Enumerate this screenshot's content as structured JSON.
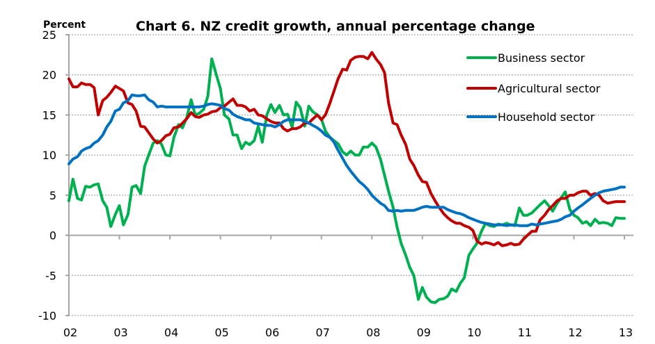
{
  "chart_data": {
    "type": "line",
    "title": "Chart 6.  NZ credit growth, annual percentage change",
    "ylabel": "Percent",
    "xlabel": "",
    "ylim": [
      -10,
      25
    ],
    "yticks": [
      25,
      20,
      15,
      10,
      5,
      0,
      -5,
      -10
    ],
    "xlim": [
      2002,
      2013
    ],
    "xtick_labels": [
      "02",
      "03",
      "04",
      "05",
      "06",
      "07",
      "08",
      "09",
      "10",
      "11",
      "12",
      "13"
    ],
    "grid": "horizontal dotted",
    "legend_position": "top-right",
    "series": [
      {
        "name": "Business sector",
        "color": "#00b050",
        "x": [
          2002.0,
          2002.08,
          2002.17,
          2002.25,
          2002.33,
          2002.42,
          2002.5,
          2002.58,
          2002.67,
          2002.75,
          2002.83,
          2002.92,
          2003.0,
          2003.08,
          2003.17,
          2003.25,
          2003.33,
          2003.42,
          2003.5,
          2003.58,
          2003.67,
          2003.75,
          2003.83,
          2003.92,
          2004.0,
          2004.08,
          2004.17,
          2004.25,
          2004.33,
          2004.42,
          2004.5,
          2004.58,
          2004.67,
          2004.75,
          2004.83,
          2004.92,
          2005.0,
          2005.08,
          2005.17,
          2005.25,
          2005.33,
          2005.42,
          2005.5,
          2005.58,
          2005.67,
          2005.75,
          2005.83,
          2005.92,
          2006.0,
          2006.08,
          2006.17,
          2006.25,
          2006.33,
          2006.42,
          2006.5,
          2006.58,
          2006.67,
          2006.75,
          2006.83,
          2006.92,
          2007.0,
          2007.08,
          2007.17,
          2007.25,
          2007.33,
          2007.42,
          2007.5,
          2007.58,
          2007.67,
          2007.75,
          2007.83,
          2007.92,
          2008.0,
          2008.08,
          2008.17,
          2008.25,
          2008.33,
          2008.42,
          2008.5,
          2008.58,
          2008.67,
          2008.75,
          2008.83,
          2008.92,
          2009.0,
          2009.08,
          2009.17,
          2009.25,
          2009.33,
          2009.42,
          2009.5,
          2009.58,
          2009.67,
          2009.75,
          2009.83,
          2009.92,
          2010.0,
          2010.08,
          2010.17,
          2010.25,
          2010.33,
          2010.42,
          2010.5,
          2010.58,
          2010.67,
          2010.75,
          2010.83,
          2010.92,
          2011.0,
          2011.08,
          2011.17,
          2011.25,
          2011.33,
          2011.42,
          2011.5,
          2011.58,
          2011.67,
          2011.75,
          2011.83,
          2011.92,
          2012.0,
          2012.08,
          2012.17,
          2012.25,
          2012.33,
          2012.42,
          2012.5,
          2012.58,
          2012.67,
          2012.75,
          2012.83,
          2012.92,
          2013.0
        ],
        "y": [
          4.3,
          7.0,
          4.6,
          4.4,
          6.1,
          6.0,
          6.3,
          6.4,
          4.3,
          3.5,
          1.1,
          2.6,
          3.7,
          1.3,
          2.6,
          6.0,
          6.2,
          5.2,
          8.6,
          10.0,
          11.5,
          11.8,
          11.4,
          10.0,
          9.9,
          12.2,
          13.8,
          13.4,
          14.6,
          16.9,
          15.0,
          15.2,
          15.7,
          17.3,
          22.0,
          20.0,
          18.3,
          15.0,
          14.5,
          12.5,
          12.5,
          10.8,
          11.6,
          11.3,
          11.8,
          13.6,
          11.6,
          15.0,
          16.3,
          15.3,
          16.2,
          15.0,
          15.1,
          13.5,
          16.6,
          15.9,
          13.6,
          16.1,
          15.4,
          15.0,
          14.5,
          13.0,
          12.2,
          11.8,
          11.4,
          10.4,
          10.0,
          10.5,
          10.0,
          10.0,
          11.0,
          11.0,
          11.5,
          11.0,
          9.5,
          7.5,
          5.5,
          3.5,
          1.0,
          -1.0,
          -2.5,
          -4.0,
          -5.0,
          -8.0,
          -6.5,
          -7.7,
          -8.3,
          -8.4,
          -8.0,
          -7.9,
          -7.6,
          -6.7,
          -7.0,
          -6.0,
          -5.3,
          -2.5,
          -1.7,
          -1.0,
          0.5,
          1.5,
          1.2,
          1.1,
          1.4,
          1.3,
          1.5,
          1.3,
          1.2,
          3.4,
          2.5,
          2.5,
          2.8,
          3.3,
          3.8,
          4.3,
          3.7,
          3.0,
          4.0,
          4.7,
          5.4,
          3.2,
          2.5,
          2.2,
          1.5,
          1.7,
          1.2,
          2.0,
          1.5,
          1.6,
          1.5,
          1.2,
          2.2,
          2.1,
          2.1
        ],
        "legend_label": "Business sector"
      },
      {
        "name": "Agricultural sector",
        "color": "#c00000",
        "x": [
          2002.0,
          2002.08,
          2002.17,
          2002.25,
          2002.33,
          2002.42,
          2002.5,
          2002.58,
          2002.67,
          2002.75,
          2002.83,
          2002.92,
          2003.0,
          2003.08,
          2003.17,
          2003.25,
          2003.33,
          2003.42,
          2003.5,
          2003.58,
          2003.67,
          2003.75,
          2003.83,
          2003.92,
          2004.0,
          2004.08,
          2004.17,
          2004.25,
          2004.33,
          2004.42,
          2004.5,
          2004.58,
          2004.67,
          2004.75,
          2004.83,
          2004.92,
          2005.0,
          2005.08,
          2005.17,
          2005.25,
          2005.33,
          2005.42,
          2005.5,
          2005.58,
          2005.67,
          2005.75,
          2005.83,
          2005.92,
          2006.0,
          2006.08,
          2006.17,
          2006.25,
          2006.33,
          2006.42,
          2006.5,
          2006.58,
          2006.67,
          2006.75,
          2006.83,
          2006.92,
          2007.0,
          2007.08,
          2007.17,
          2007.25,
          2007.33,
          2007.42,
          2007.5,
          2007.58,
          2007.67,
          2007.75,
          2007.83,
          2007.92,
          2008.0,
          2008.08,
          2008.17,
          2008.25,
          2008.33,
          2008.42,
          2008.5,
          2008.58,
          2008.67,
          2008.75,
          2008.83,
          2008.92,
          2009.0,
          2009.08,
          2009.17,
          2009.25,
          2009.33,
          2009.42,
          2009.5,
          2009.58,
          2009.67,
          2009.75,
          2009.83,
          2009.92,
          2010.0,
          2010.08,
          2010.17,
          2010.25,
          2010.33,
          2010.42,
          2010.5,
          2010.58,
          2010.67,
          2010.75,
          2010.83,
          2010.92,
          2011.0,
          2011.08,
          2011.17,
          2011.25,
          2011.33,
          2011.42,
          2011.5,
          2011.58,
          2011.67,
          2011.75,
          2011.83,
          2011.92,
          2012.0,
          2012.08,
          2012.17,
          2012.25,
          2012.33,
          2012.42,
          2012.5,
          2012.58,
          2012.67,
          2012.75,
          2012.83,
          2012.92,
          2013.0
        ],
        "y": [
          19.5,
          18.5,
          18.5,
          19.0,
          18.8,
          18.8,
          18.4,
          15.0,
          16.8,
          17.2,
          17.8,
          18.6,
          18.3,
          18.0,
          16.5,
          16.3,
          15.5,
          13.6,
          13.5,
          12.8,
          12.0,
          11.5,
          11.8,
          12.4,
          12.6,
          13.4,
          13.5,
          14.0,
          14.5,
          15.3,
          14.8,
          14.7,
          15.0,
          15.1,
          15.4,
          15.5,
          15.9,
          16.1,
          16.6,
          17.0,
          16.2,
          16.2,
          16.0,
          15.5,
          15.7,
          15.0,
          14.9,
          14.5,
          14.2,
          14.0,
          14.0,
          13.3,
          13.0,
          13.3,
          13.3,
          13.5,
          14.0,
          14.0,
          14.5,
          15.0,
          14.4,
          15.0,
          16.5,
          18.0,
          19.5,
          20.7,
          20.6,
          21.8,
          22.2,
          22.3,
          22.3,
          22.0,
          22.8,
          22.0,
          21.3,
          20.3,
          16.5,
          14.0,
          13.8,
          12.5,
          11.3,
          9.5,
          8.7,
          7.5,
          6.7,
          6.6,
          5.2,
          4.3,
          3.5,
          2.7,
          2.2,
          1.8,
          1.5,
          1.5,
          1.2,
          1.0,
          0.6,
          -0.7,
          -1.1,
          -0.9,
          -1.0,
          -1.2,
          -0.9,
          -1.3,
          -1.2,
          -1.0,
          -1.2,
          -1.1,
          -0.5,
          0.0,
          0.5,
          0.5,
          1.9,
          2.5,
          3.2,
          3.7,
          4.3,
          4.6,
          4.6,
          5.0,
          5.0,
          5.3,
          5.5,
          5.5,
          5.0,
          5.2,
          5.0,
          4.3,
          4.0,
          4.1,
          4.2,
          4.2,
          4.2
        ],
        "legend_label": "Agricultural sector"
      },
      {
        "name": "Household sector",
        "color": "#0070c0",
        "x": [
          2002.0,
          2002.08,
          2002.17,
          2002.25,
          2002.33,
          2002.42,
          2002.5,
          2002.58,
          2002.67,
          2002.75,
          2002.83,
          2002.92,
          2003.0,
          2003.08,
          2003.17,
          2003.25,
          2003.33,
          2003.42,
          2003.5,
          2003.58,
          2003.67,
          2003.75,
          2003.83,
          2003.92,
          2004.0,
          2004.08,
          2004.17,
          2004.25,
          2004.33,
          2004.42,
          2004.5,
          2004.58,
          2004.67,
          2004.75,
          2004.83,
          2004.92,
          2005.0,
          2005.08,
          2005.17,
          2005.25,
          2005.33,
          2005.42,
          2005.5,
          2005.58,
          2005.67,
          2005.75,
          2005.83,
          2005.92,
          2006.0,
          2006.08,
          2006.17,
          2006.25,
          2006.33,
          2006.42,
          2006.5,
          2006.58,
          2006.67,
          2006.75,
          2006.83,
          2006.92,
          2007.0,
          2007.08,
          2007.17,
          2007.25,
          2007.33,
          2007.42,
          2007.5,
          2007.58,
          2007.67,
          2007.75,
          2007.83,
          2007.92,
          2008.0,
          2008.08,
          2008.17,
          2008.25,
          2008.33,
          2008.42,
          2008.5,
          2008.58,
          2008.67,
          2008.75,
          2008.83,
          2008.92,
          2009.0,
          2009.08,
          2009.17,
          2009.25,
          2009.33,
          2009.42,
          2009.5,
          2009.58,
          2009.67,
          2009.75,
          2009.83,
          2009.92,
          2010.0,
          2010.08,
          2010.17,
          2010.25,
          2010.33,
          2010.42,
          2010.5,
          2010.58,
          2010.67,
          2010.75,
          2010.83,
          2010.92,
          2011.0,
          2011.08,
          2011.17,
          2011.25,
          2011.33,
          2011.42,
          2011.5,
          2011.58,
          2011.67,
          2011.75,
          2011.83,
          2011.92,
          2012.0,
          2012.08,
          2012.17,
          2012.25,
          2012.33,
          2012.42,
          2012.5,
          2012.58,
          2012.67,
          2012.75,
          2012.83,
          2012.92,
          2013.0
        ],
        "y": [
          8.9,
          9.5,
          9.8,
          10.5,
          10.8,
          11.0,
          11.5,
          11.8,
          12.5,
          13.5,
          14.2,
          15.5,
          15.7,
          16.5,
          16.8,
          17.5,
          17.4,
          17.4,
          17.5,
          16.9,
          16.6,
          16.0,
          16.1,
          16.0,
          16.0,
          16.0,
          16.0,
          16.0,
          16.0,
          16.0,
          16.0,
          16.0,
          16.1,
          16.3,
          16.4,
          16.3,
          16.2,
          15.8,
          15.6,
          15.1,
          14.8,
          14.6,
          14.4,
          14.4,
          14.0,
          13.9,
          13.8,
          13.7,
          13.7,
          13.5,
          13.8,
          14.2,
          14.4,
          14.4,
          14.4,
          14.4,
          14.2,
          14.0,
          13.7,
          13.4,
          13.0,
          12.5,
          12.2,
          11.6,
          10.6,
          9.6,
          8.7,
          8.0,
          7.3,
          6.7,
          6.3,
          5.7,
          5.0,
          4.5,
          4.0,
          3.7,
          3.1,
          3.0,
          3.1,
          3.0,
          3.1,
          3.1,
          3.1,
          3.3,
          3.5,
          3.6,
          3.5,
          3.5,
          3.5,
          3.5,
          3.2,
          3.0,
          2.8,
          2.7,
          2.5,
          2.2,
          2.0,
          1.8,
          1.6,
          1.5,
          1.4,
          1.3,
          1.3,
          1.3,
          1.2,
          1.3,
          1.3,
          1.2,
          1.2,
          1.2,
          1.4,
          1.3,
          1.4,
          1.5,
          1.6,
          1.7,
          1.8,
          2.0,
          2.3,
          2.5,
          3.0,
          3.4,
          3.8,
          4.2,
          4.6,
          5.0,
          5.3,
          5.5,
          5.6,
          5.7,
          5.8,
          6.0,
          6.0
        ],
        "legend_label": "Household sector"
      }
    ]
  }
}
